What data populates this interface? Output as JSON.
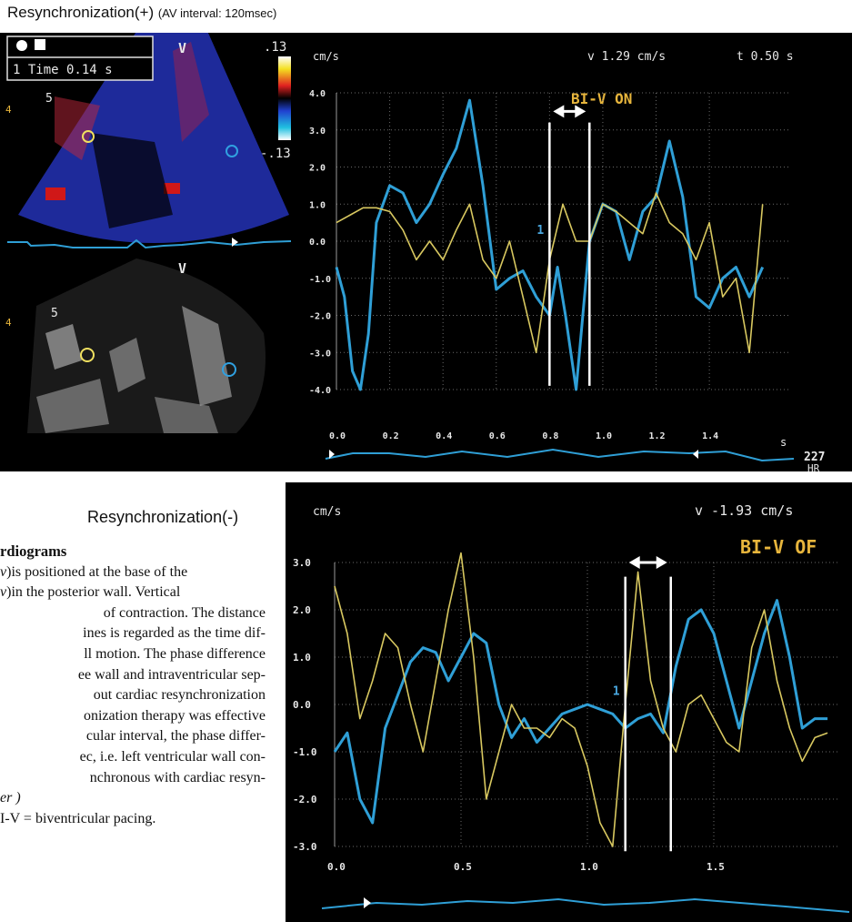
{
  "figure": {
    "top_caption": "Resynchronization(+)",
    "top_caption_sub": "(AV interval: 120msec)",
    "bottom_caption": "Resynchronization(-)"
  },
  "top_echo": {
    "mode_label": "1 Time 0.14 s",
    "colorbar_max": ".13",
    "colorbar_min": "-.13",
    "view_marker": "V",
    "segment_label": "5",
    "side_marker": "4"
  },
  "top_chart": {
    "unit_label": "cm/s",
    "velocity_readout": "v 1.29 cm/s",
    "time_readout": "t 0.50 s",
    "pacing_label": "BI-V ON",
    "cursor_label": "1",
    "hr_value": "227",
    "hr_unit": "HR",
    "x_unit": "s"
  },
  "bottom_chart": {
    "unit_label": "cm/s",
    "velocity_readout": "v -1.93 cm/s",
    "pacing_label": "BI-V OF",
    "cursor_label": "1"
  },
  "colors": {
    "background": "#000000",
    "blue_trace": "#2f9fd6",
    "yellow_trace": "#d8c860",
    "grid": "#6a6a6a",
    "label_orange": "#e7b53c",
    "label_white": "#e8e8e8"
  },
  "chart_data": [
    {
      "type": "line",
      "title": "BI-V ON",
      "xlabel": "s",
      "ylabel": "cm/s",
      "xlim": [
        0.0,
        1.7
      ],
      "ylim": [
        -4.0,
        4.0
      ],
      "xticks": [
        "0.0",
        "0.2",
        "0.4",
        "0.6",
        "0.8",
        "1.0",
        "1.2",
        "1.4"
      ],
      "yticks": [
        "4.0",
        "3.0",
        "2.0",
        "1.0",
        "0.0",
        "-1.0",
        "-2.0",
        "-3.0",
        "-4.0"
      ],
      "grid": true,
      "markers_x": [
        0.8,
        0.95
      ],
      "series": [
        {
          "color": "blue",
          "x": [
            0.0,
            0.03,
            0.06,
            0.09,
            0.12,
            0.15,
            0.2,
            0.25,
            0.3,
            0.35,
            0.4,
            0.45,
            0.5,
            0.55,
            0.6,
            0.65,
            0.7,
            0.75,
            0.8,
            0.83,
            0.86,
            0.9,
            0.95,
            1.0,
            1.05,
            1.1,
            1.15,
            1.2,
            1.25,
            1.3,
            1.35,
            1.4,
            1.45,
            1.5,
            1.55,
            1.6
          ],
          "y": [
            -0.7,
            -1.5,
            -3.5,
            -4.0,
            -2.5,
            0.5,
            1.5,
            1.3,
            0.5,
            1.0,
            1.8,
            2.5,
            3.8,
            1.5,
            -1.3,
            -1.0,
            -0.8,
            -1.5,
            -2.0,
            -0.7,
            -2.0,
            -4.0,
            0.0,
            1.0,
            0.8,
            -0.5,
            0.8,
            1.2,
            2.7,
            1.2,
            -1.5,
            -1.8,
            -1.0,
            -0.7,
            -1.5,
            -0.7
          ]
        },
        {
          "color": "yellow",
          "x": [
            0.0,
            0.05,
            0.1,
            0.15,
            0.2,
            0.25,
            0.3,
            0.35,
            0.4,
            0.45,
            0.5,
            0.55,
            0.6,
            0.65,
            0.7,
            0.75,
            0.8,
            0.85,
            0.9,
            0.95,
            1.0,
            1.05,
            1.1,
            1.15,
            1.2,
            1.25,
            1.3,
            1.35,
            1.4,
            1.45,
            1.5,
            1.55,
            1.6
          ],
          "y": [
            0.5,
            0.7,
            0.9,
            0.9,
            0.8,
            0.3,
            -0.5,
            0.0,
            -0.5,
            0.3,
            1.0,
            -0.5,
            -1.0,
            0.0,
            -1.5,
            -3.0,
            -0.5,
            1.0,
            0.0,
            0.0,
            1.0,
            0.8,
            0.5,
            0.2,
            1.3,
            0.5,
            0.2,
            -0.5,
            0.5,
            -1.5,
            -1.0,
            -3.0,
            1.0
          ]
        }
      ]
    },
    {
      "type": "line",
      "title": "BI-V OF",
      "ylabel": "cm/s",
      "xlim": [
        0.0,
        2.0
      ],
      "ylim": [
        -3.0,
        3.0
      ],
      "xticks": [
        "0.0",
        "0.5",
        "1.0",
        "1.5"
      ],
      "yticks": [
        "3.0",
        "2.0",
        "1.0",
        "0.0",
        "-1.0",
        "-2.0",
        "-3.0"
      ],
      "grid": true,
      "markers_x": [
        1.15,
        1.33
      ],
      "series": [
        {
          "color": "blue",
          "x": [
            0.0,
            0.05,
            0.1,
            0.15,
            0.2,
            0.25,
            0.3,
            0.35,
            0.4,
            0.45,
            0.5,
            0.55,
            0.6,
            0.65,
            0.7,
            0.75,
            0.8,
            0.85,
            0.9,
            0.95,
            1.0,
            1.05,
            1.1,
            1.15,
            1.2,
            1.25,
            1.3,
            1.35,
            1.4,
            1.45,
            1.5,
            1.55,
            1.6,
            1.65,
            1.7,
            1.75,
            1.8,
            1.85,
            1.9,
            1.95
          ],
          "y": [
            -1.0,
            -0.6,
            -2.0,
            -2.5,
            -0.5,
            0.2,
            0.9,
            1.2,
            1.1,
            0.5,
            1.0,
            1.5,
            1.3,
            0.0,
            -0.7,
            -0.3,
            -0.8,
            -0.5,
            -0.2,
            -0.1,
            0.0,
            -0.1,
            -0.2,
            -0.5,
            -0.3,
            -0.2,
            -0.6,
            0.8,
            1.8,
            2.0,
            1.5,
            0.5,
            -0.5,
            0.5,
            1.5,
            2.2,
            1.0,
            -0.5,
            -0.3,
            -0.3
          ]
        },
        {
          "color": "yellow",
          "x": [
            0.0,
            0.05,
            0.1,
            0.15,
            0.2,
            0.25,
            0.3,
            0.35,
            0.4,
            0.45,
            0.5,
            0.55,
            0.6,
            0.65,
            0.7,
            0.75,
            0.8,
            0.85,
            0.9,
            0.95,
            1.0,
            1.05,
            1.1,
            1.15,
            1.2,
            1.25,
            1.3,
            1.35,
            1.4,
            1.45,
            1.5,
            1.55,
            1.6,
            1.65,
            1.7,
            1.75,
            1.8,
            1.85,
            1.9,
            1.95
          ],
          "y": [
            2.5,
            1.5,
            -0.3,
            0.5,
            1.5,
            1.2,
            0.0,
            -1.0,
            0.5,
            2.0,
            3.2,
            1.0,
            -2.0,
            -1.0,
            0.0,
            -0.5,
            -0.5,
            -0.7,
            -0.3,
            -0.5,
            -1.3,
            -2.5,
            -3.0,
            0.0,
            2.8,
            0.5,
            -0.5,
            -1.0,
            0.0,
            0.2,
            -0.3,
            -0.8,
            -1.0,
            1.2,
            2.0,
            0.5,
            -0.5,
            -1.2,
            -0.7,
            -0.6
          ]
        }
      ]
    }
  ],
  "body_text": {
    "heading": "rdiograms",
    "lines": [
      ")is positioned at the base of the",
      ")in the posterior wall. Vertical",
      " of contraction. The distance",
      "ines is regarded as the time dif-",
      "ll motion. The phase difference",
      "ee wall and intraventricular sep-",
      "out cardiac resynchronization",
      "onization therapy was effective",
      "cular interval, the phase differ-",
      "ec, i.e. left ventricular wall con-",
      "nchronous with cardiac resyn-"
    ],
    "line_v_prefix": "v",
    "line_er": "er )",
    "footer": "I-V = biventricular pacing."
  }
}
